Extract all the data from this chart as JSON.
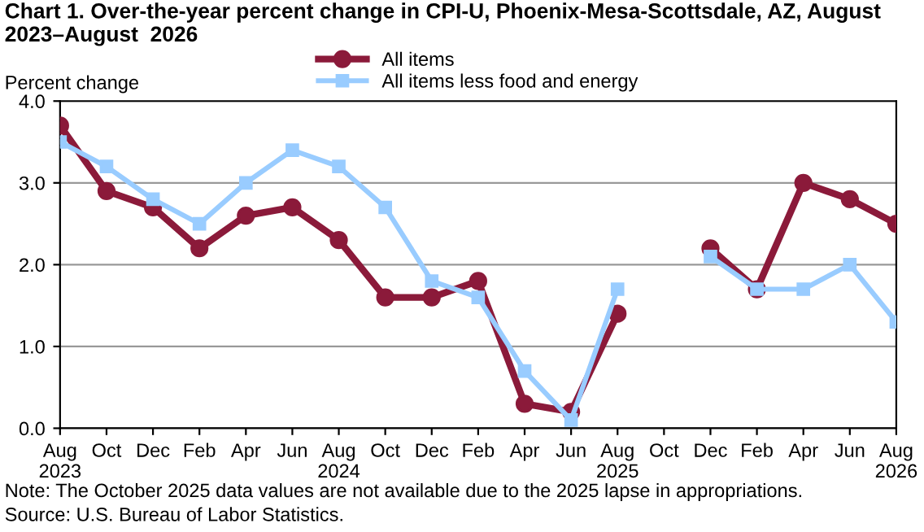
{
  "chart_data": {
    "type": "line",
    "title": "Chart 1. Over-the-year percent change in CPI-U, Phoenix-Mesa-Scottsdale, AZ, August 2023–August  2026",
    "ylabel": "Percent change",
    "categories": [
      "Aug\n2023",
      "Oct",
      "Dec",
      "Feb",
      "Apr",
      "Jun",
      "Aug\n2024",
      "Oct",
      "Dec",
      "Feb",
      "Apr",
      "Jun",
      "Aug\n2025",
      "Oct",
      "Dec",
      "Feb",
      "Apr",
      "Jun",
      "Aug\n2026"
    ],
    "series": [
      {
        "name": "All items",
        "color": "#8b1a3a",
        "marker": "circle",
        "values": [
          3.7,
          2.9,
          2.7,
          2.2,
          2.6,
          2.7,
          2.3,
          1.6,
          1.6,
          1.8,
          0.3,
          0.2,
          1.4,
          null,
          2.2,
          1.7,
          3.0,
          2.8,
          2.5
        ]
      },
      {
        "name": "All items less food and energy",
        "color": "#99ccff",
        "marker": "square",
        "values": [
          3.5,
          3.2,
          2.8,
          2.5,
          3.0,
          3.4,
          3.2,
          2.7,
          1.8,
          1.6,
          0.7,
          0.1,
          1.7,
          null,
          2.1,
          1.7,
          1.7,
          2.0,
          1.3
        ]
      }
    ],
    "ylim": [
      0,
      4
    ],
    "yticks": [
      {
        "value": 0,
        "label": "0.0"
      },
      {
        "value": 1,
        "label": "1.0"
      },
      {
        "value": 2,
        "label": "2.0"
      },
      {
        "value": 3,
        "label": "3.0"
      },
      {
        "value": 4,
        "label": "4.0"
      }
    ],
    "grid": "y",
    "legend": "top",
    "line_style": "solid",
    "annotations": [
      "Note: The October 2025 data values are not available due to the 2025 lapse in appropriations.",
      "Source: U.S. Bureau of Labor Statistics."
    ]
  }
}
